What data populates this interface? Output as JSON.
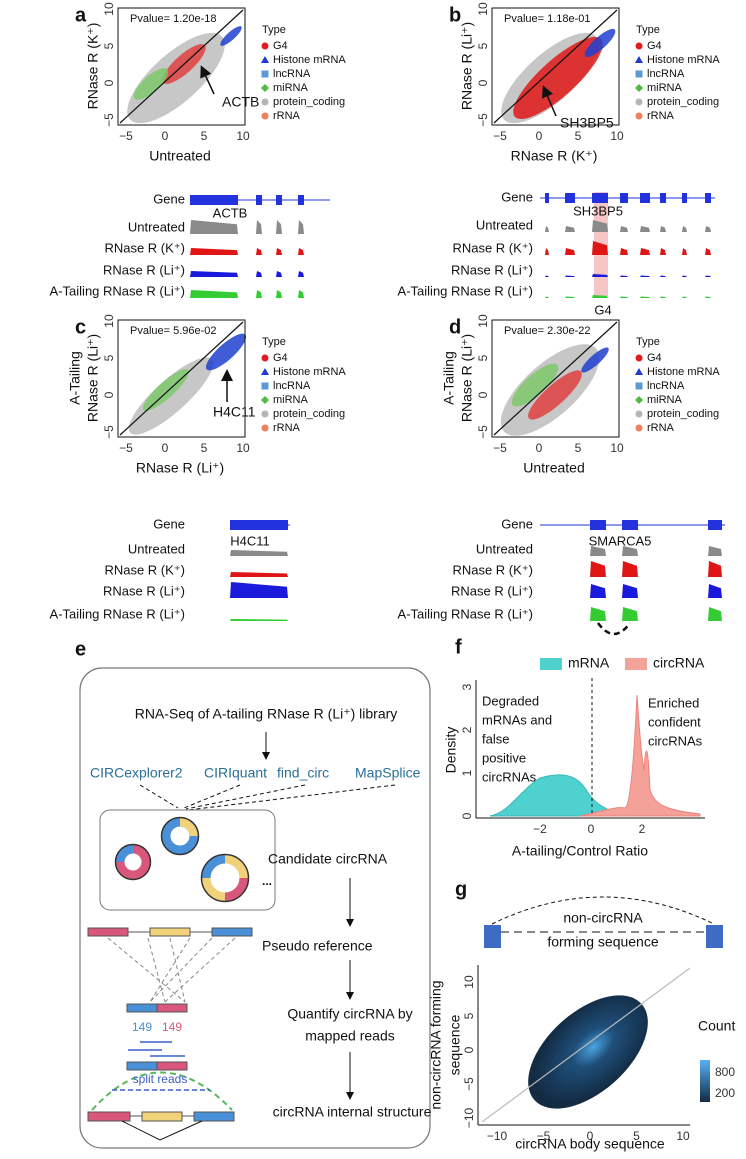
{
  "panels": {
    "a": {
      "label": "a",
      "pvalue": "Pvalue= 1.20e-18",
      "x_label": "Untreated",
      "y_label": [
        "RNase R (K⁺)"
      ],
      "x_ticks": [
        "−5",
        "0",
        "5",
        "10"
      ],
      "y_ticks": [
        "−5",
        "0",
        "5",
        "10"
      ],
      "annotation": "ACTB",
      "legend_title": "Type",
      "legend": [
        "G4",
        "Histone mRNA",
        "lncRNA",
        "miRNA",
        "protein_coding",
        "rRNA"
      ]
    },
    "b": {
      "label": "b",
      "pvalue": "Pvalue= 1.18e-01",
      "x_label": "RNase R (K⁺)",
      "y_label": [
        "RNase R (Li⁺)"
      ],
      "x_ticks": [
        "−5",
        "0",
        "5",
        "10"
      ],
      "y_ticks": [
        "−5",
        "0",
        "5",
        "10"
      ],
      "annotation": "SH3BP5",
      "legend_title": "Type",
      "legend": [
        "G4",
        "Histone mRNA",
        "lncRNA",
        "miRNA",
        "protein_coding",
        "rRNA"
      ]
    },
    "c": {
      "label": "c",
      "pvalue": "Pvalue= 5.96e-02",
      "x_label": "RNase R (Li⁺)",
      "y_label": [
        "A-Tailing",
        "RNase R (Li⁺)"
      ],
      "x_ticks": [
        "−5",
        "0",
        "5",
        "10"
      ],
      "y_ticks": [
        "−5",
        "0",
        "5",
        "10"
      ],
      "annotation": "H4C11",
      "legend_title": "Type",
      "legend": [
        "G4",
        "Histone mRNA",
        "lncRNA",
        "miRNA",
        "protein_coding",
        "rRNA"
      ]
    },
    "d": {
      "label": "d",
      "pvalue": "Pvalue= 2.30e-22",
      "x_label": "Untreated",
      "y_label": [
        "A-Tailing",
        "RNase R (Li⁺)"
      ],
      "x_ticks": [
        "−5",
        "0",
        "5",
        "10"
      ],
      "y_ticks": [
        "−5",
        "0",
        "5",
        "10"
      ],
      "legend_title": "Type",
      "legend": [
        "G4",
        "Histone mRNA",
        "lncRNA",
        "miRNA",
        "protein_coding",
        "rRNA"
      ]
    }
  },
  "tracks": {
    "a": {
      "gene_label": "Gene",
      "gene_name": "ACTB",
      "rows": [
        "Untreated",
        "RNase R (K⁺)",
        "RNase R (Li⁺)",
        "A-Tailing RNase R (Li⁺)"
      ]
    },
    "b": {
      "gene_label": "Gene",
      "gene_name": "SH3BP5",
      "rows": [
        "Untreated",
        "RNase R (K⁺)",
        "RNase R (Li⁺)",
        "A-Tailing RNase R (Li⁺)"
      ],
      "region": "G4"
    },
    "c": {
      "gene_label": "Gene",
      "gene_name": "H4C11",
      "rows": [
        "Untreated",
        "RNase R (K⁺)",
        "RNase R (Li⁺)",
        "A-Tailing RNase R (Li⁺)"
      ]
    },
    "d": {
      "gene_label": "Gene",
      "gene_name": "SMARCA5",
      "rows": [
        "Untreated",
        "RNase R (K⁺)",
        "RNase R (Li⁺)",
        "A-Tailing RNase R (Li⁺)"
      ]
    }
  },
  "panel_e": {
    "label": "e",
    "input": "RNA-Seq of A-tailing RNase R (Li⁺) library",
    "tools": [
      "CIRCexplorer2",
      "CIRIquant",
      "find_circ",
      "MapSplice"
    ],
    "ellipsis": "...",
    "steps": [
      "Candidate circRNA",
      "Pseudo reference",
      "Quantify circRNA by",
      "mapped reads",
      "circRNA internal structure"
    ],
    "junction_lengths": [
      "149",
      "149"
    ],
    "split_reads": "split reads"
  },
  "panel_f": {
    "label": "f",
    "legend": [
      "mRNA",
      "circRNA"
    ],
    "y_label": "Density",
    "x_label": "A-tailing/Control Ratio",
    "x_ticks": [
      "−2",
      "0",
      "2"
    ],
    "y_ticks": [
      "0",
      "1",
      "2",
      "3"
    ],
    "left_note": [
      "Degraded",
      "mRNAs and",
      "false",
      "positive",
      "circRNAs"
    ],
    "right_note": [
      "Enriched",
      "confident",
      "circRNAs"
    ]
  },
  "panel_g": {
    "label": "g",
    "diagram": [
      "non-circRNA",
      "forming sequence"
    ],
    "x_label": "circRNA body sequence",
    "y_label": [
      "non-circRNA forming",
      "sequence"
    ],
    "x_ticks": [
      "−10",
      "−5",
      "0",
      "5",
      "10"
    ],
    "y_ticks": [
      "−10",
      "−5",
      "0",
      "5",
      "10"
    ],
    "legend_title": "Count",
    "legend": [
      "800",
      "200"
    ]
  }
}
